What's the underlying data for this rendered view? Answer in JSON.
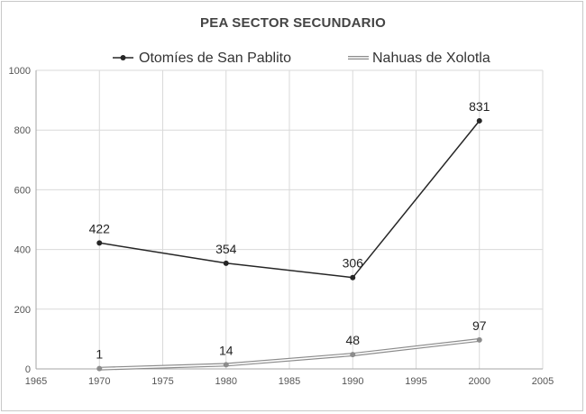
{
  "chart_data": {
    "type": "line",
    "title": "PEA SECTOR SECUNDARIO",
    "xlabel": "",
    "ylabel": "",
    "x_ticks": [
      "1965",
      "1970",
      "1975",
      "1980",
      "1985",
      "1990",
      "1995",
      "2000",
      "2005"
    ],
    "y_ticks": [
      "0",
      "200",
      "400",
      "600",
      "800",
      "1000"
    ],
    "xlim": [
      1965,
      2005
    ],
    "ylim": [
      0,
      1000
    ],
    "grid": true,
    "legend_position": "top",
    "series": [
      {
        "name": "Otomíes de San Pablito",
        "x": [
          1970,
          1980,
          1990,
          2000
        ],
        "values": [
          422,
          354,
          306,
          831
        ],
        "labels": [
          "422",
          "354",
          "306",
          "831"
        ],
        "color": "#262626",
        "style": "solid"
      },
      {
        "name": "Nahuas de Xolotla",
        "x": [
          1970,
          1980,
          1990,
          2000
        ],
        "values": [
          1,
          14,
          48,
          97
        ],
        "labels": [
          "1",
          "14",
          "48",
          "97"
        ],
        "color": "#8c8c8c",
        "style": "double"
      }
    ]
  }
}
